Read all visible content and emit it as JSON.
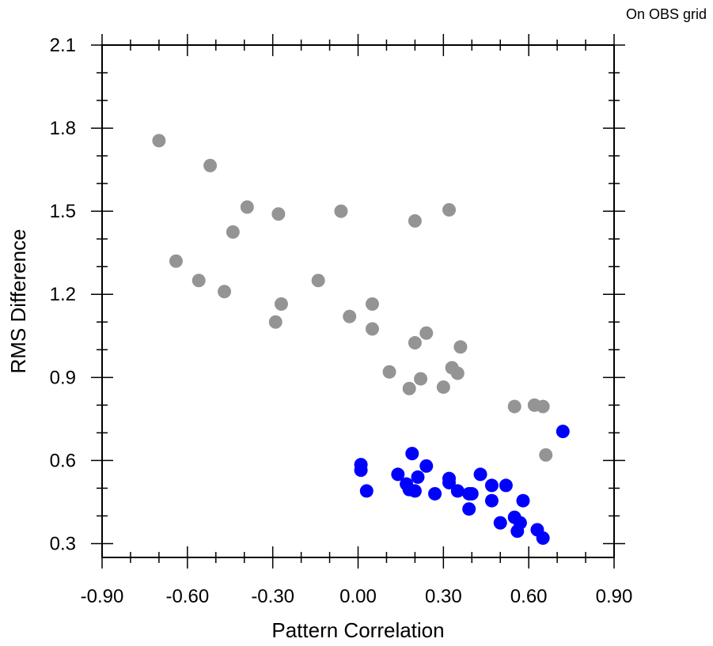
{
  "corner_note": "On OBS grid",
  "colors": {
    "series_gray": "#949494",
    "series_blue": "#0000ff",
    "axis": "#000000"
  },
  "chart_data": {
    "type": "scatter",
    "xlabel": "Pattern Correlation",
    "ylabel": "RMS Difference",
    "xlim": [
      -0.9,
      0.9
    ],
    "ylim": [
      0.25,
      2.1
    ],
    "x_ticks": [
      -0.9,
      -0.6,
      -0.3,
      0.0,
      0.3,
      0.6,
      0.9
    ],
    "x_tick_labels": [
      "-0.90",
      "-0.60",
      "-0.30",
      "0.00",
      "0.30",
      "0.60",
      "0.90"
    ],
    "y_ticks": [
      0.3,
      0.6,
      0.9,
      1.2,
      1.5,
      1.8,
      2.1
    ],
    "y_tick_labels": [
      "0.3",
      "0.6",
      "0.9",
      "1.2",
      "1.5",
      "1.8",
      "2.1"
    ],
    "x_minor_step": 0.1,
    "y_minor_step": 0.1,
    "grid": false,
    "series": [
      {
        "color": "#949494",
        "points": [
          [
            -0.7,
            1.755
          ],
          [
            -0.52,
            1.665
          ],
          [
            -0.39,
            1.515
          ],
          [
            -0.28,
            1.49
          ],
          [
            -0.06,
            1.5
          ],
          [
            0.2,
            1.465
          ],
          [
            0.32,
            1.505
          ],
          [
            -0.44,
            1.425
          ],
          [
            -0.64,
            1.32
          ],
          [
            -0.56,
            1.25
          ],
          [
            -0.47,
            1.21
          ],
          [
            -0.14,
            1.25
          ],
          [
            -0.27,
            1.165
          ],
          [
            0.05,
            1.165
          ],
          [
            -0.29,
            1.1
          ],
          [
            -0.03,
            1.12
          ],
          [
            0.05,
            1.075
          ],
          [
            0.24,
            1.06
          ],
          [
            0.2,
            1.025
          ],
          [
            0.36,
            1.01
          ],
          [
            0.33,
            0.935
          ],
          [
            0.35,
            0.915
          ],
          [
            0.11,
            0.92
          ],
          [
            0.22,
            0.895
          ],
          [
            0.18,
            0.86
          ],
          [
            0.3,
            0.865
          ],
          [
            0.55,
            0.795
          ],
          [
            0.62,
            0.8
          ],
          [
            0.65,
            0.795
          ],
          [
            0.66,
            0.62
          ]
        ]
      },
      {
        "color": "#0000ff",
        "points": [
          [
            0.72,
            0.705
          ],
          [
            0.19,
            0.625
          ],
          [
            0.01,
            0.585
          ],
          [
            0.01,
            0.565
          ],
          [
            0.24,
            0.58
          ],
          [
            0.14,
            0.55
          ],
          [
            0.43,
            0.55
          ],
          [
            0.21,
            0.54
          ],
          [
            0.32,
            0.535
          ],
          [
            0.32,
            0.52
          ],
          [
            0.17,
            0.515
          ],
          [
            0.47,
            0.51
          ],
          [
            0.52,
            0.51
          ],
          [
            0.03,
            0.49
          ],
          [
            0.18,
            0.495
          ],
          [
            0.2,
            0.49
          ],
          [
            0.35,
            0.49
          ],
          [
            0.39,
            0.48
          ],
          [
            0.27,
            0.48
          ],
          [
            0.4,
            0.48
          ],
          [
            0.47,
            0.455
          ],
          [
            0.58,
            0.455
          ],
          [
            0.39,
            0.425
          ],
          [
            0.55,
            0.395
          ],
          [
            0.5,
            0.375
          ],
          [
            0.57,
            0.375
          ],
          [
            0.63,
            0.35
          ],
          [
            0.56,
            0.345
          ],
          [
            0.65,
            0.32
          ]
        ]
      }
    ]
  }
}
